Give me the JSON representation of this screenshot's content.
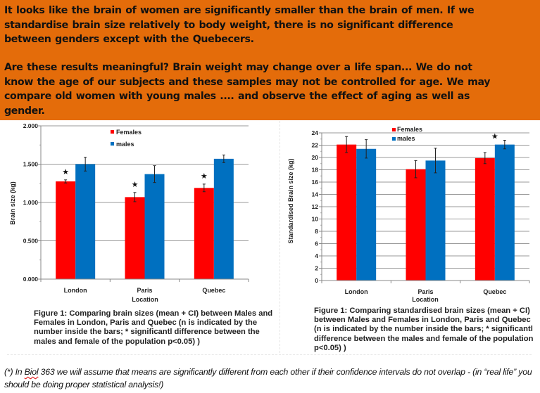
{
  "banner": {
    "background": "#e46c0a",
    "paragraph1": "It looks like the brain of women are significantly smaller than the brain of men.  If we\nstandardise brain size relatively to body weight, there is no significant difference\nbetween genders except with the Quebecers.",
    "paragraph2": "Are these results meaningful? Brain weight may change over a life span... We do not\nknow the age of our subjects and these samples may not be controlled for age. We may\ncompare old women with young males .... and observe the effect of aging as well as\ngender."
  },
  "chart_data": [
    {
      "type": "bar",
      "title": "",
      "categories": [
        "London",
        "Paris",
        "Quebec"
      ],
      "series": [
        {
          "name": "Females",
          "color": "#ff0000",
          "values": [
            1.275,
            1.07,
            1.19
          ],
          "ci": [
            0.02,
            0.06,
            0.05
          ]
        },
        {
          "name": "males",
          "color": "#0070c0",
          "values": [
            1.5,
            1.37,
            1.57
          ],
          "ci": [
            0.09,
            0.11,
            0.05
          ]
        }
      ],
      "significant": [
        true,
        true,
        true
      ],
      "significance_marker": "★",
      "xlabel": "Location",
      "ylabel": "Brain size (kg)",
      "ylim": [
        0,
        2
      ],
      "yticks": [
        "0.000",
        "0.500",
        "1.000",
        "1.500",
        "2.000"
      ],
      "ytick_values": [
        0,
        0.5,
        1,
        1.5,
        2
      ],
      "grid": true,
      "legend": "top-center",
      "caption": "Figure 1: Comparing brain sizes (mean + CI) between Males and Females in London, Paris and Quebec (n is indicated by the number inside the bars; * significantl difference between the males and female of the population p<0.05) )"
    },
    {
      "type": "bar",
      "title": "",
      "categories": [
        "London",
        "Paris",
        "Quebec"
      ],
      "series": [
        {
          "name": "Females",
          "color": "#ff0000",
          "values": [
            22.1,
            18.1,
            19.9
          ],
          "ci": [
            1.3,
            1.4,
            0.9
          ]
        },
        {
          "name": "males",
          "color": "#0070c0",
          "values": [
            21.4,
            19.5,
            22.1
          ],
          "ci": [
            1.5,
            2.0,
            0.7
          ]
        }
      ],
      "significant": [
        false,
        false,
        true
      ],
      "significance_marker": "★",
      "xlabel": "Location",
      "ylabel": "Standardised Brain size (kg)",
      "ylim": [
        0,
        24
      ],
      "yticks": [
        "0",
        "2",
        "4",
        "6",
        "8",
        "10",
        "12",
        "14",
        "16",
        "18",
        "20",
        "22",
        "24"
      ],
      "ytick_values": [
        0,
        2,
        4,
        6,
        8,
        10,
        12,
        14,
        16,
        18,
        20,
        22,
        24
      ],
      "grid": true,
      "legend": "top-center",
      "caption": "Figure 1: Comparing standardised  brain sizes (mean + CI) between Males and Females in London, Paris and Quebec (n is indicated by the number inside the bars; * significantl difference between the males and female of the population p<0.05) )"
    }
  ],
  "footnote": {
    "prefix": "(*) In ",
    "misspelled": "Biol",
    "rest": " 363  we will  assume that means are significantly different from each other if their confidence intervals do not overlap -  (in “real life” you should be doing proper statistical analysis!)"
  }
}
